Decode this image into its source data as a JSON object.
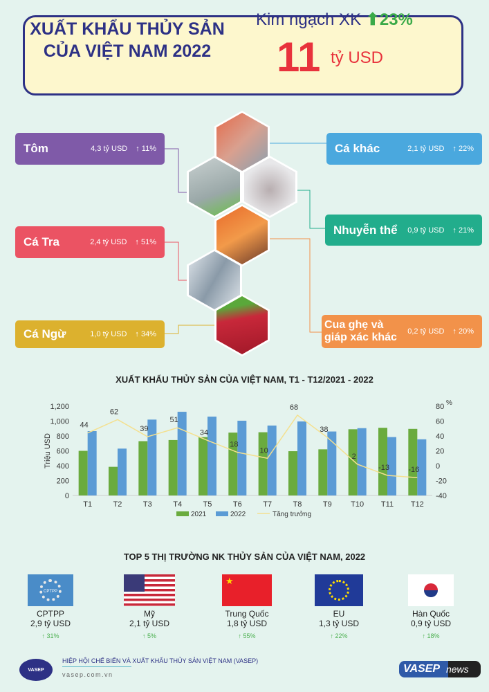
{
  "header": {
    "title": "XUẤT KHẨU THỦY SẢN CỦA VIỆT NAM 2022",
    "kn_label": "Kim ngạch XK",
    "kn_growth": "23%",
    "total_value": "11",
    "total_unit": "tỷ USD"
  },
  "categories": [
    {
      "name": "Tôm",
      "value": "4,3 tỷ USD",
      "growth": "↑ 11%",
      "color": "#7f5aa8"
    },
    {
      "name": "Cá khác",
      "value": "2,1 tỷ USD",
      "growth": "↑ 22%",
      "color": "#4aa8de"
    },
    {
      "name": "Nhuyễn thể",
      "value": "0,9 tỷ USD",
      "growth": "↑ 21%",
      "color": "#22ad8c"
    },
    {
      "name": "Cá Tra",
      "value": "2,4 tỷ USD",
      "growth": "↑ 51%",
      "color": "#eb5363"
    },
    {
      "name": "Cá Ngừ",
      "value": "1,0 tỷ USD",
      "growth": "↑ 34%",
      "color": "#dcb12e"
    },
    {
      "name": "Cua ghẹ và giáp xác khác",
      "value": "0,2 tỷ USD",
      "growth": "↑ 20%",
      "color": "#f2924a"
    }
  ],
  "chart_data": {
    "type": "bar",
    "title": "XUẤT KHẨU THỦY SẢN CỦA VIỆT NAM, T1 - T12/2021 - 2022",
    "ylabel": "Triệu USD",
    "y2label": "%",
    "categories": [
      "T1",
      "T2",
      "T3",
      "T4",
      "T5",
      "T6",
      "T7",
      "T8",
      "T9",
      "T10",
      "T11",
      "T12"
    ],
    "ylim": [
      0,
      1200
    ],
    "y2lim": [
      -40,
      80
    ],
    "yticks": [
      "0",
      "200",
      "400",
      "600",
      "800",
      "1,000",
      "1,200"
    ],
    "y2ticks": [
      "-40",
      "-20",
      "0",
      "20",
      "40",
      "60",
      "80"
    ],
    "series": [
      {
        "name": "2021",
        "type": "bar",
        "color": "#6aab3e",
        "values": [
          600,
          385,
          730,
          745,
          785,
          845,
          850,
          595,
          620,
          890,
          910,
          895
        ]
      },
      {
        "name": "2022",
        "type": "bar",
        "color": "#5b9bd5",
        "values": [
          865,
          630,
          1020,
          1125,
          1060,
          1005,
          940,
          995,
          860,
          905,
          785,
          755
        ]
      },
      {
        "name": "Tăng trưởng",
        "type": "line",
        "axis": "right",
        "color": "#f4e08f",
        "values": [
          44,
          62,
          39,
          51,
          34,
          18,
          10,
          68,
          38,
          2,
          -13,
          -16
        ]
      }
    ],
    "legend": "bottom",
    "grid": false
  },
  "top5": {
    "title": "TOP 5 THỊ TRƯỜNG NK THỦY SẢN CỦA VIỆT NAM, 2022",
    "markets": [
      {
        "name": "CPTPP",
        "value": "2,9 tỷ USD",
        "growth": "↑ 31%",
        "flag_text": "CPTPP"
      },
      {
        "name": "Mỹ",
        "value": "2,1 tỷ USD",
        "growth": "↑ 5%"
      },
      {
        "name": "Trung Quốc",
        "value": "1,8 tỷ USD",
        "growth": "↑ 55%"
      },
      {
        "name": "EU",
        "value": "1,3 tỷ USD",
        "growth": "↑ 22%"
      },
      {
        "name": "Hàn Quốc",
        "value": "0,9 tỷ USD",
        "growth": "↑ 18%"
      }
    ]
  },
  "footer": {
    "org": "HIỆP HỘI CHẾ BIẾN VÀ XUẤT KHẨU THỦY SẢN VIỆT NAM (VASEP)",
    "url": "vasep.com.vn",
    "logo_text": "VASEP",
    "brand": "VASEP",
    "brand_suffix": "news"
  }
}
